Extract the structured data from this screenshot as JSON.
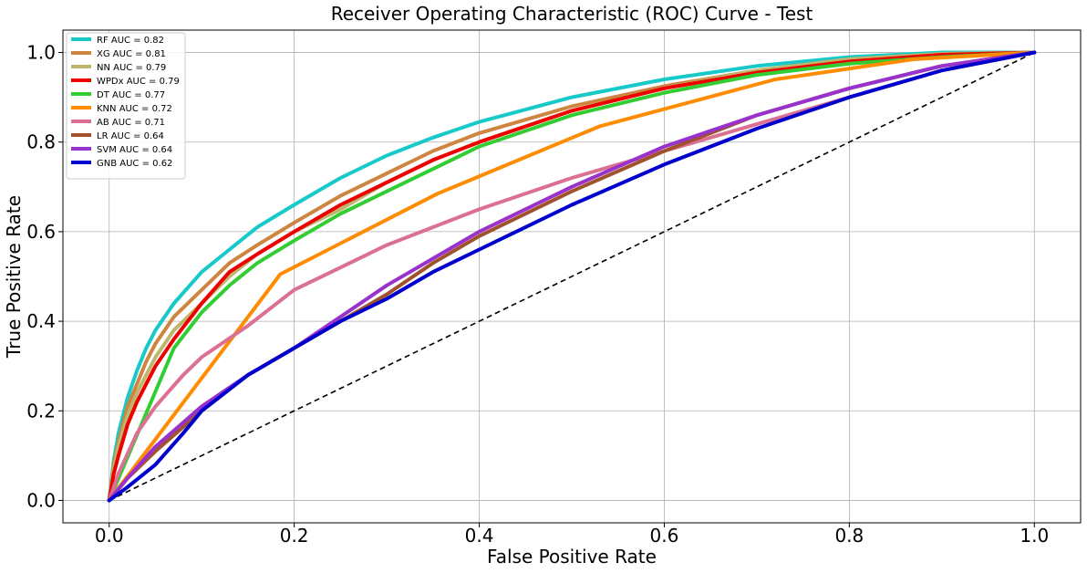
{
  "chart_data": {
    "type": "line",
    "title": "Receiver Operating Characteristic (ROC) Curve - Test",
    "xlabel": "False Positive Rate",
    "ylabel": "True Positive Rate",
    "xlim": [
      -0.05,
      1.05
    ],
    "ylim": [
      -0.05,
      1.05
    ],
    "xticks": [
      0.0,
      0.2,
      0.4,
      0.6,
      0.8,
      1.0
    ],
    "xtick_labels": [
      "0.0",
      "0.2",
      "0.4",
      "0.6",
      "0.8",
      "1.0"
    ],
    "yticks": [
      0.0,
      0.2,
      0.4,
      0.6,
      0.8,
      1.0
    ],
    "ytick_labels": [
      "0.0",
      "0.2",
      "0.4",
      "0.6",
      "0.8",
      "1.0"
    ],
    "grid": true,
    "legend_position": "upper-left",
    "reference_line": {
      "x": [
        0,
        1
      ],
      "y": [
        0,
        1
      ],
      "style": "dashed",
      "color": "#000000"
    },
    "series": [
      {
        "name": "RF AUC = 0.82",
        "color": "#17c9c9",
        "x": [
          0,
          0.005,
          0.01,
          0.02,
          0.03,
          0.04,
          0.05,
          0.07,
          0.1,
          0.13,
          0.16,
          0.2,
          0.25,
          0.3,
          0.35,
          0.4,
          0.5,
          0.6,
          0.7,
          0.8,
          0.9,
          1.0
        ],
        "y": [
          0,
          0.09,
          0.15,
          0.23,
          0.29,
          0.34,
          0.38,
          0.44,
          0.51,
          0.56,
          0.61,
          0.66,
          0.72,
          0.77,
          0.81,
          0.845,
          0.9,
          0.94,
          0.97,
          0.99,
          1.0,
          1.0
        ]
      },
      {
        "name": "XG AUC = 0.81",
        "color": "#cd853f",
        "x": [
          0,
          0.005,
          0.01,
          0.02,
          0.03,
          0.04,
          0.05,
          0.07,
          0.1,
          0.13,
          0.16,
          0.2,
          0.25,
          0.3,
          0.35,
          0.4,
          0.5,
          0.6,
          0.7,
          0.8,
          0.9,
          1.0
        ],
        "y": [
          0,
          0.08,
          0.13,
          0.21,
          0.26,
          0.31,
          0.35,
          0.41,
          0.47,
          0.53,
          0.57,
          0.62,
          0.68,
          0.73,
          0.78,
          0.82,
          0.88,
          0.925,
          0.96,
          0.985,
          0.997,
          1.0
        ]
      },
      {
        "name": "NN AUC = 0.79",
        "color": "#bdb76b",
        "x": [
          0,
          0.005,
          0.01,
          0.02,
          0.03,
          0.04,
          0.05,
          0.07,
          0.1,
          0.13,
          0.16,
          0.2,
          0.25,
          0.3,
          0.35,
          0.4,
          0.5,
          0.6,
          0.7,
          0.8,
          0.9,
          1.0
        ],
        "y": [
          0,
          0.07,
          0.12,
          0.19,
          0.24,
          0.28,
          0.32,
          0.38,
          0.44,
          0.5,
          0.55,
          0.6,
          0.65,
          0.71,
          0.76,
          0.8,
          0.87,
          0.92,
          0.96,
          0.985,
          0.997,
          1.0
        ]
      },
      {
        "name": "WPDx AUC = 0.79",
        "color": "#ee0000",
        "x": [
          0,
          0.005,
          0.01,
          0.02,
          0.03,
          0.04,
          0.05,
          0.07,
          0.1,
          0.13,
          0.16,
          0.2,
          0.25,
          0.3,
          0.35,
          0.4,
          0.5,
          0.6,
          0.7,
          0.8,
          0.9,
          1.0
        ],
        "y": [
          0,
          0.06,
          0.1,
          0.17,
          0.22,
          0.26,
          0.3,
          0.36,
          0.44,
          0.51,
          0.55,
          0.6,
          0.66,
          0.71,
          0.76,
          0.8,
          0.87,
          0.92,
          0.955,
          0.98,
          0.995,
          1.0
        ]
      },
      {
        "name": "DT AUC = 0.77",
        "color": "#32cd32",
        "x": [
          0,
          0.07,
          0.1,
          0.13,
          0.16,
          0.2,
          0.25,
          0.3,
          0.35,
          0.4,
          0.5,
          0.6,
          0.7,
          0.8,
          0.9,
          1.0
        ],
        "y": [
          0,
          0.34,
          0.42,
          0.48,
          0.53,
          0.58,
          0.64,
          0.69,
          0.74,
          0.79,
          0.86,
          0.91,
          0.95,
          0.975,
          0.99,
          1.0
        ]
      },
      {
        "name": "KNN AUC = 0.72",
        "color": "#ff8c00",
        "x": [
          0,
          0.185,
          0.355,
          0.53,
          0.72,
          0.87,
          1.0
        ],
        "y": [
          0,
          0.505,
          0.685,
          0.835,
          0.94,
          0.985,
          1.0
        ]
      },
      {
        "name": "AB AUC = 0.71",
        "color": "#db7093",
        "x": [
          0,
          0.01,
          0.03,
          0.05,
          0.08,
          0.1,
          0.15,
          0.2,
          0.25,
          0.3,
          0.35,
          0.4,
          0.5,
          0.6,
          0.7,
          0.8,
          0.9,
          1.0
        ],
        "y": [
          0,
          0.06,
          0.15,
          0.21,
          0.28,
          0.32,
          0.39,
          0.47,
          0.52,
          0.57,
          0.61,
          0.65,
          0.72,
          0.78,
          0.84,
          0.9,
          0.96,
          1.0
        ]
      },
      {
        "name": "LR AUC = 0.64",
        "color": "#a0522d",
        "x": [
          0,
          0.02,
          0.05,
          0.1,
          0.15,
          0.2,
          0.25,
          0.3,
          0.35,
          0.4,
          0.5,
          0.6,
          0.7,
          0.8,
          0.9,
          1.0
        ],
        "y": [
          0,
          0.05,
          0.11,
          0.2,
          0.28,
          0.34,
          0.4,
          0.46,
          0.53,
          0.59,
          0.69,
          0.78,
          0.86,
          0.92,
          0.97,
          1.0
        ]
      },
      {
        "name": "SVM AUC = 0.64",
        "color": "#9932cc",
        "x": [
          0,
          0.02,
          0.05,
          0.1,
          0.15,
          0.2,
          0.25,
          0.3,
          0.35,
          0.4,
          0.5,
          0.6,
          0.7,
          0.8,
          0.9,
          1.0
        ],
        "y": [
          0,
          0.05,
          0.12,
          0.21,
          0.28,
          0.34,
          0.41,
          0.48,
          0.54,
          0.6,
          0.7,
          0.79,
          0.86,
          0.92,
          0.97,
          1.0
        ]
      },
      {
        "name": "GNB AUC = 0.62",
        "color": "#0000cd",
        "x": [
          0,
          0.02,
          0.05,
          0.08,
          0.1,
          0.15,
          0.2,
          0.25,
          0.3,
          0.35,
          0.4,
          0.5,
          0.6,
          0.7,
          0.8,
          0.9,
          1.0
        ],
        "y": [
          0,
          0.03,
          0.08,
          0.15,
          0.2,
          0.28,
          0.34,
          0.4,
          0.45,
          0.51,
          0.56,
          0.66,
          0.75,
          0.83,
          0.9,
          0.96,
          1.0
        ]
      }
    ]
  }
}
